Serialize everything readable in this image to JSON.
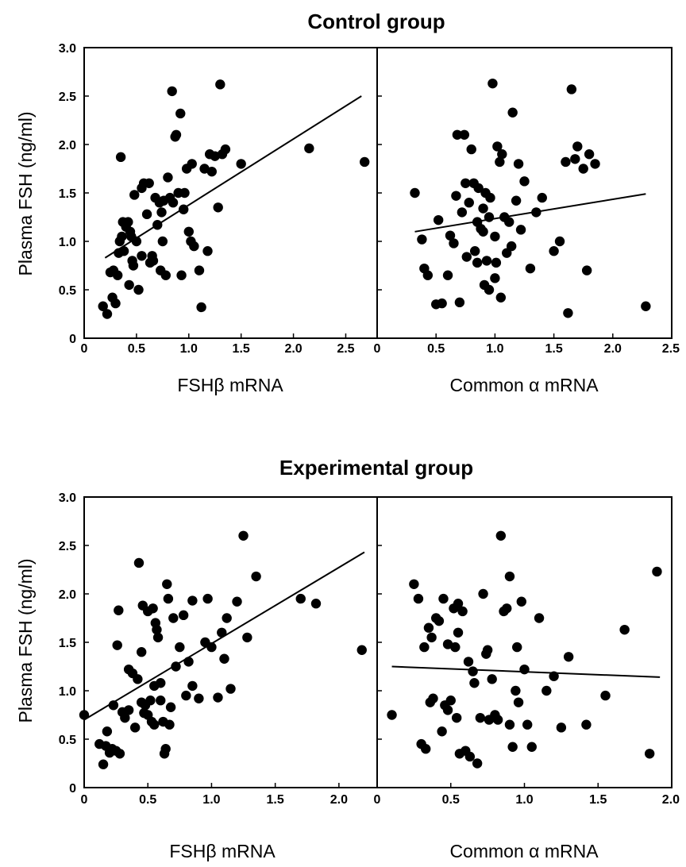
{
  "chart_data": [
    {
      "type": "scatter",
      "group_title": "Control group",
      "panel": "left",
      "xlabel": "FSHβ mRNA",
      "ylabel": "Plasma FSH (ng/ml)",
      "xlim": [
        0,
        2.8
      ],
      "ylim": [
        0,
        3.0
      ],
      "xticks": [
        0,
        0.5,
        1.0,
        1.5,
        2.0,
        2.5
      ],
      "xtick_labels": [
        "0",
        "0.5",
        "1.0",
        "1.5",
        "2.0",
        "2.5"
      ],
      "yticks": [
        0,
        0.5,
        1.0,
        1.5,
        2.0,
        2.5,
        3.0
      ],
      "ytick_labels": [
        "0",
        "0.5",
        "1.0",
        "1.5",
        "2.0",
        "2.5",
        "3.0"
      ],
      "regression": {
        "x": [
          0.2,
          2.65
        ],
        "y": [
          0.83,
          2.5
        ]
      },
      "points": {
        "x": [
          0.18,
          0.22,
          0.27,
          0.28,
          0.3,
          0.32,
          0.33,
          0.34,
          0.35,
          0.36,
          0.37,
          0.38,
          0.4,
          0.42,
          0.43,
          0.44,
          0.45,
          0.46,
          0.47,
          0.48,
          0.5,
          0.52,
          0.55,
          0.57,
          0.6,
          0.62,
          0.63,
          0.65,
          0.66,
          0.68,
          0.7,
          0.72,
          0.73,
          0.74,
          0.75,
          0.76,
          0.78,
          0.8,
          0.82,
          0.84,
          0.85,
          0.87,
          0.88,
          0.9,
          0.92,
          0.93,
          0.95,
          0.96,
          0.98,
          1.0,
          1.02,
          1.03,
          1.05,
          1.1,
          1.12,
          1.15,
          1.18,
          1.2,
          1.22,
          1.25,
          1.28,
          1.3,
          1.32,
          1.35,
          1.5,
          2.15,
          2.68,
          0.25,
          0.55
        ],
        "y": [
          0.33,
          0.25,
          0.42,
          0.7,
          0.36,
          0.65,
          0.88,
          1.0,
          1.87,
          1.05,
          1.2,
          0.9,
          1.15,
          1.2,
          0.55,
          1.1,
          1.05,
          0.8,
          0.75,
          1.48,
          1.0,
          0.5,
          0.85,
          1.6,
          1.28,
          1.6,
          0.78,
          0.85,
          0.8,
          1.45,
          1.17,
          1.4,
          0.7,
          1.3,
          1.0,
          1.42,
          0.65,
          1.66,
          1.45,
          2.55,
          1.4,
          2.08,
          2.1,
          1.5,
          2.32,
          0.65,
          1.33,
          1.5,
          1.75,
          1.1,
          1.0,
          1.8,
          0.95,
          0.7,
          0.32,
          1.75,
          0.9,
          1.9,
          1.72,
          1.88,
          1.35,
          2.62,
          1.9,
          1.95,
          1.8,
          1.96,
          1.82,
          0.68,
          1.55
        ]
      }
    },
    {
      "type": "scatter",
      "group_title": "Control group",
      "panel": "right",
      "xlabel": "Common α mRNA",
      "ylabel": "",
      "xlim": [
        0,
        2.5
      ],
      "ylim": [
        0,
        3.0
      ],
      "xticks": [
        0,
        0.5,
        1.0,
        1.5,
        2.0,
        2.5
      ],
      "xtick_labels": [
        "0",
        "0.5",
        "1.0",
        "1.5",
        "2.0",
        "2.5"
      ],
      "regression": {
        "x": [
          0.32,
          2.28
        ],
        "y": [
          1.1,
          1.49
        ]
      },
      "points": {
        "x": [
          0.32,
          0.38,
          0.4,
          0.43,
          0.5,
          0.52,
          0.55,
          0.6,
          0.62,
          0.65,
          0.67,
          0.68,
          0.7,
          0.72,
          0.74,
          0.75,
          0.76,
          0.78,
          0.8,
          0.82,
          0.83,
          0.85,
          0.86,
          0.88,
          0.9,
          0.91,
          0.92,
          0.93,
          0.95,
          0.96,
          0.98,
          1.0,
          1.01,
          1.02,
          1.04,
          1.05,
          1.06,
          1.08,
          1.1,
          1.12,
          1.14,
          1.15,
          1.18,
          1.2,
          1.22,
          1.25,
          1.3,
          1.35,
          1.4,
          1.5,
          1.55,
          1.6,
          1.62,
          1.65,
          1.68,
          1.7,
          1.75,
          1.78,
          1.8,
          1.85,
          2.28,
          0.9,
          0.95,
          1.0,
          0.85
        ],
        "y": [
          1.5,
          1.02,
          0.72,
          0.65,
          0.35,
          1.22,
          0.36,
          0.65,
          1.06,
          0.98,
          1.47,
          2.1,
          0.37,
          1.3,
          2.1,
          1.6,
          0.84,
          1.4,
          1.95,
          1.6,
          0.9,
          1.2,
          1.55,
          1.13,
          1.1,
          0.55,
          1.5,
          0.8,
          0.5,
          1.45,
          2.63,
          0.62,
          0.78,
          1.98,
          1.82,
          0.42,
          1.9,
          1.25,
          0.88,
          1.2,
          0.95,
          2.33,
          1.42,
          1.8,
          1.12,
          1.62,
          0.72,
          1.3,
          1.45,
          0.9,
          1.0,
          1.82,
          0.26,
          2.57,
          1.85,
          1.98,
          1.75,
          0.7,
          1.9,
          1.8,
          0.33,
          1.34,
          1.25,
          1.05,
          0.78
        ]
      }
    },
    {
      "type": "scatter",
      "group_title": "Experimental group",
      "panel": "left",
      "xlabel": "FSHβ mRNA",
      "ylabel": "Plasma FSH (ng/ml)",
      "xlim": [
        0,
        2.3
      ],
      "ylim": [
        0,
        3.0
      ],
      "xticks": [
        0,
        0.5,
        1.0,
        1.5,
        2.0
      ],
      "xtick_labels": [
        "0",
        "0.5",
        "1.0",
        "1.5",
        "2.0"
      ],
      "yticks": [
        0,
        0.5,
        1.0,
        1.5,
        2.0,
        2.5,
        3.0
      ],
      "ytick_labels": [
        "0",
        "0.5",
        "1.0",
        "1.5",
        "2.0",
        "2.5",
        "3.0"
      ],
      "regression": {
        "x": [
          0.0,
          2.2
        ],
        "y": [
          0.7,
          2.43
        ]
      },
      "points": {
        "x": [
          0.0,
          0.12,
          0.15,
          0.17,
          0.18,
          0.2,
          0.22,
          0.23,
          0.25,
          0.26,
          0.27,
          0.28,
          0.3,
          0.32,
          0.35,
          0.38,
          0.4,
          0.42,
          0.43,
          0.45,
          0.46,
          0.47,
          0.48,
          0.5,
          0.52,
          0.53,
          0.54,
          0.55,
          0.56,
          0.57,
          0.58,
          0.6,
          0.62,
          0.63,
          0.64,
          0.65,
          0.66,
          0.67,
          0.68,
          0.7,
          0.72,
          0.75,
          0.78,
          0.8,
          0.82,
          0.85,
          0.9,
          0.95,
          0.97,
          1.0,
          1.05,
          1.08,
          1.1,
          1.12,
          1.15,
          1.2,
          1.25,
          1.28,
          1.35,
          1.7,
          1.82,
          2.18,
          0.6,
          0.5,
          0.55,
          0.45,
          0.35,
          0.85
        ],
        "y": [
          0.75,
          0.45,
          0.24,
          0.43,
          0.58,
          0.36,
          0.4,
          0.85,
          0.38,
          1.47,
          1.83,
          0.35,
          0.78,
          0.72,
          1.22,
          1.18,
          0.62,
          1.12,
          2.32,
          0.88,
          1.88,
          0.77,
          0.85,
          1.82,
          0.9,
          0.68,
          1.85,
          0.65,
          1.7,
          1.63,
          1.55,
          1.08,
          0.68,
          0.35,
          0.4,
          2.1,
          1.95,
          0.65,
          0.83,
          1.75,
          1.25,
          1.45,
          1.78,
          0.95,
          1.3,
          1.93,
          0.92,
          1.5,
          1.95,
          1.45,
          0.93,
          1.6,
          1.33,
          1.75,
          1.02,
          1.92,
          2.6,
          1.55,
          2.18,
          1.95,
          1.9,
          1.42,
          0.9,
          0.75,
          1.05,
          1.4,
          0.8,
          1.05
        ]
      }
    },
    {
      "type": "scatter",
      "group_title": "Experimental group",
      "panel": "right",
      "xlabel": "Common α mRNA",
      "ylabel": "",
      "xlim": [
        0,
        2.0
      ],
      "ylim": [
        0,
        3.0
      ],
      "xticks": [
        0,
        0.5,
        1.0,
        1.5,
        2.0
      ],
      "xtick_labels": [
        "0",
        "0.5",
        "1.0",
        "1.5",
        "2.0"
      ],
      "regression": {
        "x": [
          0.1,
          1.92
        ],
        "y": [
          1.25,
          1.14
        ]
      },
      "points": {
        "x": [
          0.1,
          0.25,
          0.28,
          0.3,
          0.32,
          0.33,
          0.35,
          0.36,
          0.37,
          0.38,
          0.4,
          0.42,
          0.44,
          0.45,
          0.46,
          0.48,
          0.5,
          0.52,
          0.53,
          0.54,
          0.55,
          0.56,
          0.58,
          0.6,
          0.62,
          0.63,
          0.65,
          0.68,
          0.7,
          0.72,
          0.74,
          0.75,
          0.76,
          0.78,
          0.8,
          0.82,
          0.84,
          0.86,
          0.88,
          0.9,
          0.92,
          0.94,
          0.95,
          0.96,
          0.98,
          1.0,
          1.02,
          1.05,
          1.1,
          1.15,
          1.2,
          1.25,
          1.3,
          1.42,
          1.55,
          1.68,
          1.85,
          1.9,
          0.9,
          0.55,
          0.48,
          0.66
        ],
        "y": [
          0.75,
          2.1,
          1.95,
          0.45,
          1.45,
          0.4,
          1.65,
          0.88,
          1.55,
          0.92,
          1.75,
          1.72,
          0.58,
          1.95,
          0.85,
          1.48,
          0.9,
          1.85,
          1.45,
          0.72,
          1.9,
          0.35,
          1.82,
          0.38,
          1.3,
          0.32,
          1.2,
          0.25,
          0.72,
          2.0,
          1.38,
          1.42,
          0.7,
          1.12,
          0.75,
          0.7,
          2.6,
          1.82,
          1.85,
          0.65,
          0.42,
          1.0,
          1.45,
          0.88,
          1.92,
          1.22,
          0.65,
          0.42,
          1.75,
          1.0,
          1.15,
          0.62,
          1.35,
          0.65,
          0.95,
          1.63,
          0.35,
          2.23,
          2.18,
          1.6,
          0.8,
          1.08
        ]
      }
    }
  ]
}
